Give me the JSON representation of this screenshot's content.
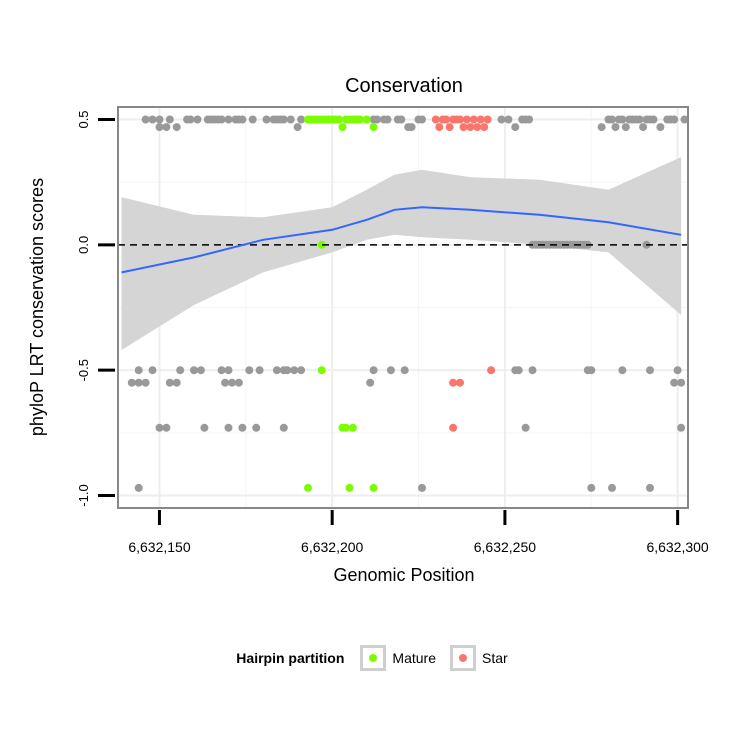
{
  "colors": {
    "other": "#999999",
    "mature": "#7CFC00",
    "star": "#F8766D",
    "smooth": "#3366FF",
    "band": "#d3d3d3"
  },
  "chart_data": {
    "type": "scatter",
    "title": "Conservation",
    "xlabel": "Genomic Position",
    "ylabel": "phyloP LRT conservation scores",
    "xlim": [
      6632138,
      6632303
    ],
    "ylim": [
      -1.05,
      0.55
    ],
    "x_ticks": [
      6632150,
      6632200,
      6632250,
      6632300
    ],
    "x_tick_labels": [
      "6,632,150",
      "6,632,200",
      "6,632,250",
      "6,632,300"
    ],
    "y_ticks": [
      -1.0,
      -0.5,
      0.0,
      0.5
    ],
    "y_tick_labels": [
      "-1.0",
      "-0.5",
      "0.0",
      "0.5"
    ],
    "reference_line": {
      "y": 0,
      "style": "dashed"
    },
    "legend": {
      "title": "Hairpin partition",
      "entries": [
        {
          "label": "Mature",
          "series": "Mature"
        },
        {
          "label": "Star",
          "series": "Star"
        }
      ]
    },
    "series": [
      {
        "name": "Other",
        "points": [
          [
            6632146,
            0.5
          ],
          [
            6632148,
            0.5
          ],
          [
            6632150,
            0.5
          ],
          [
            6632150,
            0.47
          ],
          [
            6632152,
            0.47
          ],
          [
            6632153,
            0.5
          ],
          [
            6632155,
            0.47
          ],
          [
            6632158,
            0.5
          ],
          [
            6632159,
            0.5
          ],
          [
            6632161,
            0.5
          ],
          [
            6632164,
            0.5
          ],
          [
            6632165,
            0.5
          ],
          [
            6632166,
            0.5
          ],
          [
            6632167,
            0.5
          ],
          [
            6632168,
            0.5
          ],
          [
            6632170,
            0.5
          ],
          [
            6632172,
            0.5
          ],
          [
            6632173,
            0.5
          ],
          [
            6632174,
            0.5
          ],
          [
            6632177,
            0.5
          ],
          [
            6632181,
            0.5
          ],
          [
            6632183,
            0.5
          ],
          [
            6632184,
            0.5
          ],
          [
            6632185,
            0.5
          ],
          [
            6632186,
            0.5
          ],
          [
            6632188,
            0.5
          ],
          [
            6632190,
            0.47
          ],
          [
            6632191,
            0.5
          ],
          [
            6632212,
            0.5
          ],
          [
            6632213,
            0.5
          ],
          [
            6632215,
            0.5
          ],
          [
            6632216,
            0.5
          ],
          [
            6632219,
            0.5
          ],
          [
            6632220,
            0.5
          ],
          [
            6632222,
            0.47
          ],
          [
            6632223,
            0.47
          ],
          [
            6632225,
            0.5
          ],
          [
            6632226,
            0.5
          ],
          [
            6632249,
            0.5
          ],
          [
            6632251,
            0.5
          ],
          [
            6632253,
            0.47
          ],
          [
            6632255,
            0.5
          ],
          [
            6632256,
            0.5
          ],
          [
            6632257,
            0.5
          ],
          [
            6632278,
            0.47
          ],
          [
            6632280,
            0.5
          ],
          [
            6632281,
            0.5
          ],
          [
            6632282,
            0.47
          ],
          [
            6632283,
            0.5
          ],
          [
            6632284,
            0.5
          ],
          [
            6632285,
            0.47
          ],
          [
            6632286,
            0.5
          ],
          [
            6632287,
            0.5
          ],
          [
            6632288,
            0.5
          ],
          [
            6632289,
            0.5
          ],
          [
            6632290,
            0.47
          ],
          [
            6632291,
            0.5
          ],
          [
            6632292,
            0.5
          ],
          [
            6632293,
            0.5
          ],
          [
            6632295,
            0.47
          ],
          [
            6632297,
            0.5
          ],
          [
            6632298,
            0.5
          ],
          [
            6632299,
            0.5
          ],
          [
            6632302,
            0.5
          ],
          [
            6632258,
            0
          ],
          [
            6632259,
            0
          ],
          [
            6632260,
            0
          ],
          [
            6632261,
            0
          ],
          [
            6632262,
            0
          ],
          [
            6632263,
            0
          ],
          [
            6632264,
            0
          ],
          [
            6632265,
            0
          ],
          [
            6632266,
            0
          ],
          [
            6632267,
            0
          ],
          [
            6632268,
            0
          ],
          [
            6632269,
            0
          ],
          [
            6632270,
            0
          ],
          [
            6632271,
            0
          ],
          [
            6632272,
            0
          ],
          [
            6632273,
            0
          ],
          [
            6632274,
            0
          ],
          [
            6632291,
            0
          ],
          [
            6632144,
            -0.5
          ],
          [
            6632148,
            -0.5
          ],
          [
            6632156,
            -0.5
          ],
          [
            6632160,
            -0.5
          ],
          [
            6632162,
            -0.5
          ],
          [
            6632168,
            -0.5
          ],
          [
            6632170,
            -0.5
          ],
          [
            6632176,
            -0.5
          ],
          [
            6632179,
            -0.5
          ],
          [
            6632184,
            -0.5
          ],
          [
            6632186,
            -0.5
          ],
          [
            6632187,
            -0.5
          ],
          [
            6632189,
            -0.5
          ],
          [
            6632191,
            -0.5
          ],
          [
            6632212,
            -0.5
          ],
          [
            6632217,
            -0.5
          ],
          [
            6632221,
            -0.5
          ],
          [
            6632253,
            -0.5
          ],
          [
            6632254,
            -0.5
          ],
          [
            6632258,
            -0.5
          ],
          [
            6632274,
            -0.5
          ],
          [
            6632275,
            -0.5
          ],
          [
            6632284,
            -0.5
          ],
          [
            6632292,
            -0.5
          ],
          [
            6632300,
            -0.5
          ],
          [
            6632142,
            -0.55
          ],
          [
            6632144,
            -0.55
          ],
          [
            6632146,
            -0.55
          ],
          [
            6632153,
            -0.55
          ],
          [
            6632155,
            -0.55
          ],
          [
            6632169,
            -0.55
          ],
          [
            6632171,
            -0.55
          ],
          [
            6632173,
            -0.55
          ],
          [
            6632211,
            -0.55
          ],
          [
            6632299,
            -0.55
          ],
          [
            6632301,
            -0.55
          ],
          [
            6632150,
            -0.73
          ],
          [
            6632152,
            -0.73
          ],
          [
            6632163,
            -0.73
          ],
          [
            6632170,
            -0.73
          ],
          [
            6632174,
            -0.73
          ],
          [
            6632178,
            -0.73
          ],
          [
            6632186,
            -0.73
          ],
          [
            6632256,
            -0.73
          ],
          [
            6632301,
            -0.73
          ],
          [
            6632144,
            -0.97
          ],
          [
            6632226,
            -0.97
          ],
          [
            6632275,
            -0.97
          ],
          [
            6632281,
            -0.97
          ],
          [
            6632292,
            -0.97
          ]
        ]
      },
      {
        "name": "Mature",
        "points": [
          [
            6632193,
            0.5
          ],
          [
            6632194,
            0.5
          ],
          [
            6632195,
            0.5
          ],
          [
            6632196,
            0.5
          ],
          [
            6632197,
            0.5
          ],
          [
            6632198,
            0.5
          ],
          [
            6632199,
            0.5
          ],
          [
            6632200,
            0.5
          ],
          [
            6632201,
            0.5
          ],
          [
            6632202,
            0.5
          ],
          [
            6632204,
            0.5
          ],
          [
            6632205,
            0.5
          ],
          [
            6632206,
            0.5
          ],
          [
            6632207,
            0.5
          ],
          [
            6632208,
            0.5
          ],
          [
            6632210,
            0.5
          ],
          [
            6632203,
            0.47
          ],
          [
            6632212,
            0.47
          ],
          [
            6632197,
            0
          ],
          [
            6632197,
            -0.5
          ],
          [
            6632203,
            -0.73
          ],
          [
            6632204,
            -0.73
          ],
          [
            6632206,
            -0.73
          ],
          [
            6632193,
            -0.97
          ],
          [
            6632205,
            -0.97
          ],
          [
            6632212,
            -0.97
          ]
        ]
      },
      {
        "name": "Star",
        "points": [
          [
            6632230,
            0.5
          ],
          [
            6632232,
            0.5
          ],
          [
            6632233,
            0.5
          ],
          [
            6632235,
            0.5
          ],
          [
            6632236,
            0.5
          ],
          [
            6632237,
            0.5
          ],
          [
            6632239,
            0.5
          ],
          [
            6632241,
            0.5
          ],
          [
            6632243,
            0.5
          ],
          [
            6632245,
            0.5
          ],
          [
            6632231,
            0.47
          ],
          [
            6632234,
            0.47
          ],
          [
            6632238,
            0.47
          ],
          [
            6632240,
            0.47
          ],
          [
            6632242,
            0.47
          ],
          [
            6632244,
            0.47
          ],
          [
            6632246,
            -0.5
          ],
          [
            6632235,
            -0.55
          ],
          [
            6632237,
            -0.55
          ],
          [
            6632235,
            -0.73
          ]
        ]
      },
      {
        "name": "Loess smooth",
        "x": [
          6632139,
          6632160,
          6632180,
          6632200,
          6632210,
          6632218,
          6632226,
          6632240,
          6632260,
          6632280,
          6632301
        ],
        "y": [
          -0.11,
          -0.05,
          0.02,
          0.06,
          0.1,
          0.14,
          0.15,
          0.14,
          0.12,
          0.09,
          0.04
        ],
        "ci_upper": [
          0.19,
          0.12,
          0.11,
          0.15,
          0.22,
          0.28,
          0.3,
          0.27,
          0.26,
          0.22,
          0.35
        ],
        "ci_lower": [
          -0.42,
          -0.24,
          -0.11,
          -0.03,
          0.02,
          0.04,
          0.03,
          0.02,
          0.0,
          -0.03,
          -0.28
        ]
      }
    ]
  }
}
